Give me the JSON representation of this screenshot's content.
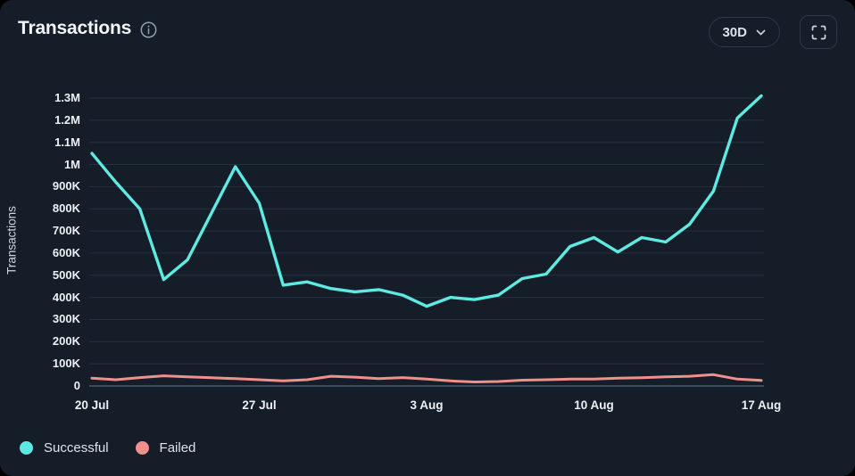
{
  "header": {
    "title": "Transactions",
    "range_selector": {
      "value": "30D"
    }
  },
  "icons": {
    "info": "info-icon",
    "range_chevron": "chevron-down-icon",
    "expand": "fullscreen-icon"
  },
  "colors": {
    "background": "#151d28",
    "successful": "#5eeae2",
    "failed": "#ef908c",
    "gridline": "#243140",
    "axis_line": "#4a5a6d"
  },
  "y_axis": {
    "title": "Transactions",
    "tick_labels": [
      "0",
      "100K",
      "200K",
      "300K",
      "400K",
      "500K",
      "600K",
      "700K",
      "800K",
      "900K",
      "1M",
      "1.1M",
      "1.2M",
      "1.3M"
    ],
    "tick_step": 100000
  },
  "x_axis": {
    "ticks": [
      {
        "label": "20 Jul",
        "index": 0
      },
      {
        "label": "27 Jul",
        "index": 7
      },
      {
        "label": "3 Aug",
        "index": 14
      },
      {
        "label": "10 Aug",
        "index": 21
      },
      {
        "label": "17 Aug",
        "index": 28
      }
    ]
  },
  "legend": [
    {
      "label": "Successful",
      "color": "#5eeae2"
    },
    {
      "label": "Failed",
      "color": "#ef908c"
    }
  ],
  "chart_data": {
    "type": "line",
    "title": "Transactions",
    "ylabel": "Transactions",
    "ylim": [
      0,
      1300000
    ],
    "y_tick_step": 100000,
    "grid": "horizontal",
    "legend_position": "bottom-left",
    "x": [
      "20 Jul",
      "21 Jul",
      "22 Jul",
      "23 Jul",
      "24 Jul",
      "25 Jul",
      "26 Jul",
      "27 Jul",
      "28 Jul",
      "29 Jul",
      "30 Jul",
      "31 Jul",
      "1 Aug",
      "2 Aug",
      "3 Aug",
      "4 Aug",
      "5 Aug",
      "6 Aug",
      "7 Aug",
      "8 Aug",
      "9 Aug",
      "10 Aug",
      "11 Aug",
      "12 Aug",
      "13 Aug",
      "14 Aug",
      "15 Aug",
      "16 Aug",
      "17 Aug"
    ],
    "series": [
      {
        "name": "Successful",
        "color": "#5eeae2",
        "values": [
          1050000,
          920000,
          800000,
          480000,
          570000,
          780000,
          990000,
          825000,
          455000,
          470000,
          440000,
          425000,
          435000,
          410000,
          360000,
          400000,
          390000,
          410000,
          485000,
          505000,
          630000,
          670000,
          605000,
          670000,
          650000,
          730000,
          880000,
          1210000,
          1310000
        ]
      },
      {
        "name": "Failed",
        "color": "#ef908c",
        "values": [
          35000,
          28000,
          38000,
          46000,
          41000,
          37000,
          33000,
          28000,
          23000,
          28000,
          44000,
          40000,
          33000,
          38000,
          31000,
          23000,
          18000,
          20000,
          26000,
          28000,
          31000,
          31000,
          35000,
          37000,
          41000,
          44000,
          51000,
          31000,
          25000
        ]
      }
    ]
  }
}
